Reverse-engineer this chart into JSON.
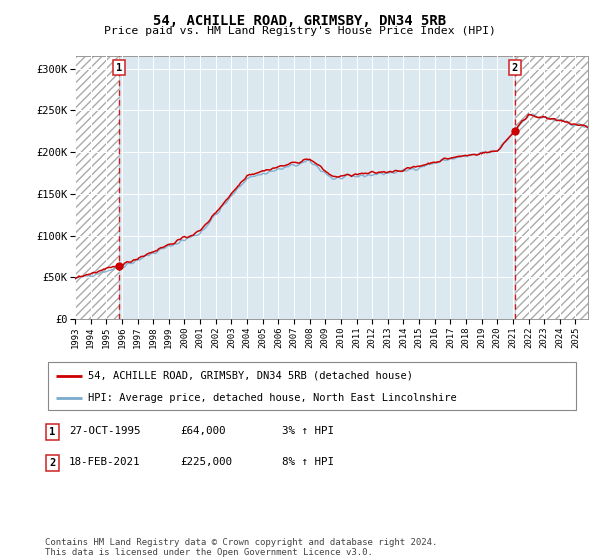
{
  "title": "54, ACHILLE ROAD, GRIMSBY, DN34 5RB",
  "subtitle": "Price paid vs. HM Land Registry's House Price Index (HPI)",
  "ylabel_ticks": [
    "£0",
    "£50K",
    "£100K",
    "£150K",
    "£200K",
    "£250K",
    "£300K"
  ],
  "ytick_vals": [
    0,
    50000,
    100000,
    150000,
    200000,
    250000,
    300000
  ],
  "ylim": [
    0,
    315000
  ],
  "xlim_start": 1993.0,
  "xlim_end": 2025.8,
  "sale1_date": 1995.82,
  "sale1_price": 64000,
  "sale2_date": 2021.12,
  "sale2_price": 225000,
  "line_color_red": "#cc0000",
  "line_color_blue": "#7aabcf",
  "hatch_color": "#bbbbbb",
  "bg_color": "#dce8f0",
  "legend_line1": "54, ACHILLE ROAD, GRIMSBY, DN34 5RB (detached house)",
  "legend_line2": "HPI: Average price, detached house, North East Lincolnshire",
  "table_row1": [
    "1",
    "27-OCT-1995",
    "£64,000",
    "3% ↑ HPI"
  ],
  "table_row2": [
    "2",
    "18-FEB-2021",
    "£225,000",
    "8% ↑ HPI"
  ],
  "footer": "Contains HM Land Registry data © Crown copyright and database right 2024.\nThis data is licensed under the Open Government Licence v3.0.",
  "xtick_years": [
    1993,
    1994,
    1995,
    1996,
    1997,
    1998,
    1999,
    2000,
    2001,
    2002,
    2003,
    2004,
    2005,
    2006,
    2007,
    2008,
    2009,
    2010,
    2011,
    2012,
    2013,
    2014,
    2015,
    2016,
    2017,
    2018,
    2019,
    2020,
    2021,
    2022,
    2023,
    2024,
    2025
  ]
}
